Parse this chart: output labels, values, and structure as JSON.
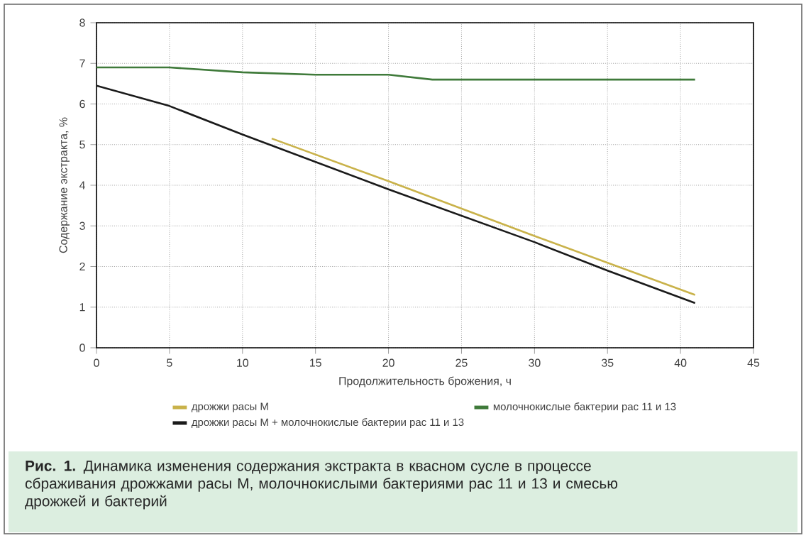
{
  "chart_data": {
    "type": "line",
    "xlabel": "Продолжительность брожения, ч",
    "ylabel": "Содержание экстракта, %",
    "annotations": [
      "**Рис. 1.** Динамика изменения содержания экстракта в квасном сусле в процессе сбраживания дрожжами расы М, молочнокислыми бактериями рас 11 и 13 и смесью дрожжей и бактерий"
    ],
    "series": [
      {
        "name": "дрожжи расы М",
        "color": "#c9b24a",
        "x": [
          12,
          20,
          30,
          41
        ],
        "values": [
          5.15,
          4.1,
          2.75,
          1.3
        ]
      },
      {
        "name": "молочнокислые бактерии рас 11 и 13",
        "color": "#3f7a3a",
        "x": [
          0,
          5,
          10,
          15,
          20,
          23,
          30,
          41
        ],
        "values": [
          6.9,
          6.9,
          6.78,
          6.72,
          6.72,
          6.6,
          6.6,
          6.6
        ]
      },
      {
        "name": "дрожжи расы М + молочнокислые бактерии рас 11 и 13",
        "color": "#1a1a1a",
        "x": [
          0,
          5,
          10,
          20,
          30,
          35,
          41
        ],
        "values": [
          6.45,
          5.95,
          5.25,
          3.9,
          2.6,
          1.9,
          1.1
        ]
      }
    ],
    "xlim": [
      0,
      45
    ],
    "ylim": [
      0,
      8
    ],
    "xticks": [
      0,
      5,
      10,
      15,
      20,
      25,
      30,
      35,
      40,
      45
    ],
    "yticks": [
      0,
      1,
      2,
      3,
      4,
      5,
      6,
      7,
      8
    ],
    "grid": true,
    "legend": "bottom",
    "marker": "none",
    "line_style": "solid"
  }
}
